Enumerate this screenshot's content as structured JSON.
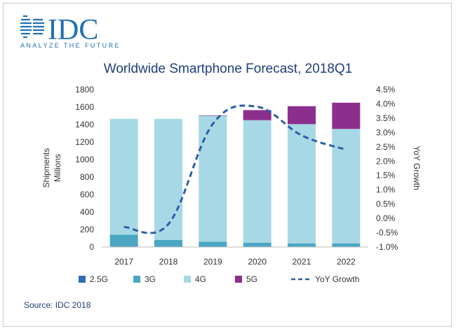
{
  "brand": {
    "name": "IDC",
    "tagline": "ANALYZE THE FUTURE",
    "logo_icon": "globe-lines-icon",
    "color": "#1f6fb2"
  },
  "source": "Source: IDC 2018",
  "chart_data": {
    "type": "bar",
    "stacked": true,
    "title": "Worldwide Smartphone Forecast, 2018Q1",
    "categories": [
      "2017",
      "2018",
      "2019",
      "2020",
      "2021",
      "2022"
    ],
    "ylabel_line1": "Shipments",
    "ylabel_line2": "Millions",
    "y2label": "YoY Growth",
    "ylim": [
      0,
      1800
    ],
    "yticks": [
      "0",
      "200",
      "400",
      "600",
      "800",
      "1000",
      "1200",
      "1400",
      "1600",
      "1800"
    ],
    "y2lim": [
      -1.0,
      4.5
    ],
    "y2ticks": [
      "-1.0%",
      "-0.5%",
      "0.0%",
      "0.5%",
      "1.0%",
      "1.5%",
      "2.0%",
      "2.5%",
      "3.0%",
      "3.5%",
      "4.0%",
      "4.5%"
    ],
    "series": [
      {
        "name": "2.5G",
        "color": "#2e6fb3",
        "values": [
          0,
          0,
          0,
          0,
          0,
          0
        ]
      },
      {
        "name": "3G",
        "color": "#4ba7c4",
        "values": [
          140,
          80,
          60,
          50,
          40,
          40
        ]
      },
      {
        "name": "4G",
        "color": "#a7d8e6",
        "values": [
          1325,
          1385,
          1440,
          1400,
          1365,
          1310
        ]
      },
      {
        "name": "5G",
        "color": "#8c2f8c",
        "values": [
          0,
          0,
          5,
          115,
          205,
          300
        ]
      }
    ],
    "line_series": {
      "name": "YoY Growth",
      "color": "#2e5fa6",
      "values": [
        -0.3,
        -0.2,
        3.3,
        3.9,
        2.9,
        2.4
      ]
    },
    "legend_position": "bottom",
    "grid": false
  }
}
